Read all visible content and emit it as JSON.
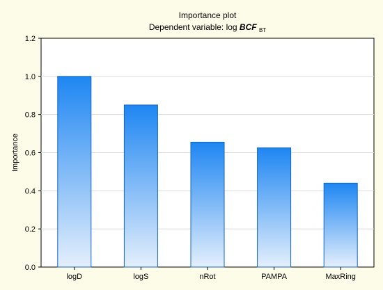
{
  "chart_data": {
    "type": "bar",
    "title": "Importance plot",
    "subtitle_prefix": "Dependent variable: log ",
    "subtitle_emph": "BCF",
    "subtitle_sub": "BT",
    "xlabel": "",
    "ylabel": "Importance",
    "categories": [
      "logD",
      "logS",
      "nRot",
      "PAMPA",
      "MaxRing"
    ],
    "values": [
      1.0,
      0.85,
      0.655,
      0.625,
      0.44
    ],
    "ylim": [
      0,
      1.2
    ],
    "yticks": [
      "0.0",
      "0.2",
      "0.4",
      "0.6",
      "0.8",
      "1.0",
      "1.2"
    ],
    "grid": true,
    "colors": {
      "background": "#fdfce9",
      "plot_area": "#ffffff",
      "bar_top": "#1e86f2",
      "bar_bottom": "#e4effc",
      "bar_edge": "#1565c0",
      "grid": "#dcdcdc"
    }
  }
}
